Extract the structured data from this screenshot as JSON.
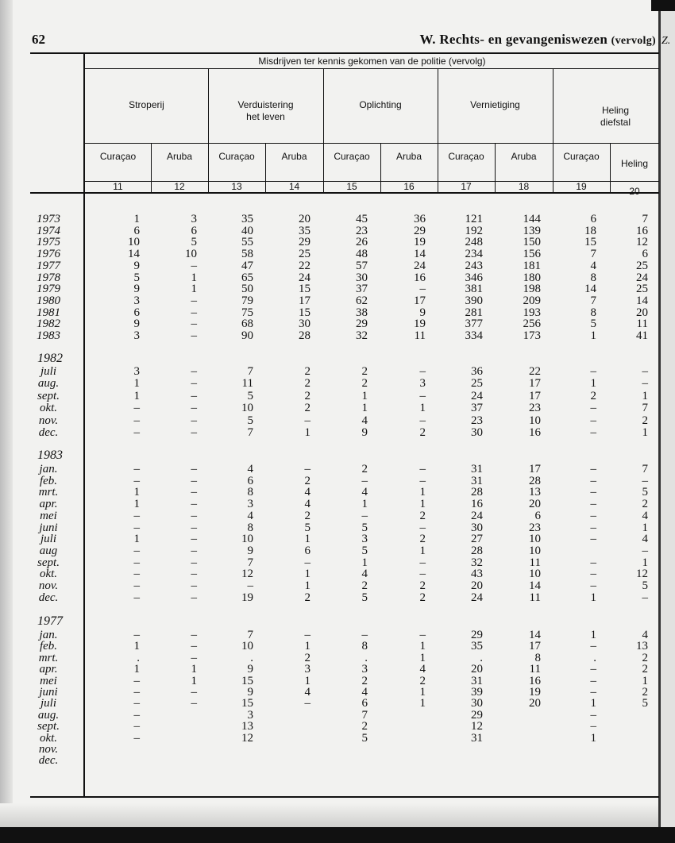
{
  "page_number": "62",
  "running_title": {
    "main": "W.  Rechts-  en  gevangeniswezen",
    "suffix": "(vervolg)"
  },
  "side_fragment": "Z.",
  "table": {
    "super_header": "Misdrijven ter kennis gekomen van de politie (vervolg)",
    "groups": [
      {
        "label": "Stroperij"
      },
      {
        "label": "Verduistering",
        "label2": "het leven"
      },
      {
        "label": "Oplichting"
      },
      {
        "label": "Vernietiging"
      },
      {
        "label": "Heling",
        "label2": "diefstal"
      }
    ],
    "subheaders": [
      "Curaçao",
      "Aruba",
      "Curaçao",
      "Aruba",
      "Curaçao",
      "Aruba",
      "Curaçao",
      "Aruba",
      "Curaçao",
      "Heling"
    ],
    "column_numbers": [
      "11",
      "12",
      "13",
      "14",
      "15",
      "16",
      "17",
      "18",
      "19",
      "20"
    ],
    "sections": [
      {
        "heading": "",
        "rows": [
          {
            "label": "1973",
            "values": [
              "1",
              "3",
              "35",
              "20",
              "45",
              "36",
              "121",
              "144",
              "6",
              "7"
            ]
          },
          {
            "label": "1974",
            "values": [
              "6",
              "6",
              "40",
              "35",
              "23",
              "29",
              "192",
              "139",
              "18",
              "16"
            ]
          },
          {
            "label": "1975",
            "values": [
              "10",
              "5",
              "55",
              "29",
              "26",
              "19",
              "248",
              "150",
              "15",
              "12"
            ]
          },
          {
            "label": "1976",
            "values": [
              "14",
              "10",
              "58",
              "25",
              "48",
              "14",
              "234",
              "156",
              "7",
              "6"
            ]
          },
          {
            "label": "1977",
            "values": [
              "9",
              "–",
              "47",
              "22",
              "57",
              "24",
              "243",
              "181",
              "4",
              "25"
            ]
          },
          {
            "label": "1978",
            "values": [
              "5",
              "1",
              "65",
              "24",
              "30",
              "16",
              "346",
              "180",
              "8",
              "24"
            ]
          },
          {
            "label": "1979",
            "values": [
              "9",
              "1",
              "50",
              "15",
              "37",
              "–",
              "381",
              "198",
              "14",
              "25"
            ]
          },
          {
            "label": "1980",
            "values": [
              "3",
              "–",
              "79",
              "17",
              "62",
              "17",
              "390",
              "209",
              "7",
              "14"
            ]
          },
          {
            "label": "1981",
            "values": [
              "6",
              "–",
              "75",
              "15",
              "38",
              "9",
              "281",
              "193",
              "8",
              "20"
            ]
          },
          {
            "label": "1982",
            "values": [
              "9",
              "–",
              "68",
              "30",
              "29",
              "19",
              "377",
              "256",
              "5",
              "11"
            ]
          },
          {
            "label": "1983",
            "values": [
              "3",
              "–",
              "90",
              "28",
              "32",
              "11",
              "334",
              "173",
              "1",
              "41"
            ]
          }
        ]
      },
      {
        "heading": "1982",
        "rows": [
          {
            "label": "juli",
            "values": [
              "3",
              "–",
              "7",
              "2",
              "2",
              "–",
              "36",
              "22",
              "–",
              "–"
            ]
          },
          {
            "label": "aug.",
            "values": [
              "1",
              "–",
              "11",
              "2",
              "2",
              "3",
              "25",
              "17",
              "1",
              "–"
            ]
          },
          {
            "label": "sept.",
            "values": [
              "1",
              "–",
              "5",
              "2",
              "1",
              "–",
              "24",
              "17",
              "2",
              "1"
            ]
          },
          {
            "label": "okt.",
            "values": [
              "–",
              "–",
              "10",
              "2",
              "1",
              "1",
              "37",
              "23",
              "–",
              "7"
            ]
          },
          {
            "label": "nov.",
            "values": [
              "–",
              "–",
              "5",
              "–",
              "4",
              "–",
              "23",
              "10",
              "–",
              "2"
            ]
          },
          {
            "label": "dec.",
            "values": [
              "–",
              "–",
              "7",
              "1",
              "9",
              "2",
              "30",
              "16",
              "–",
              "1"
            ]
          }
        ]
      },
      {
        "heading": "1983",
        "rows": [
          {
            "label": "jan.",
            "values": [
              "–",
              "–",
              "4",
              "–",
              "2",
              "–",
              "31",
              "17",
              "–",
              "7"
            ]
          },
          {
            "label": "feb.",
            "values": [
              "–",
              "–",
              "6",
              "2",
              "–",
              "–",
              "31",
              "28",
              "–",
              "–"
            ]
          },
          {
            "label": "mrt.",
            "values": [
              "1",
              "–",
              "8",
              "4",
              "4",
              "1",
              "28",
              "13",
              "–",
              "5"
            ]
          },
          {
            "label": "apr.",
            "values": [
              "1",
              "–",
              "3",
              "4",
              "1",
              "1",
              "16",
              "20",
              "–",
              "2"
            ]
          },
          {
            "label": "mei",
            "values": [
              "–",
              "–",
              "4",
              "2",
              "–",
              "2",
              "24",
              "6",
              "–",
              "4"
            ]
          },
          {
            "label": "juni",
            "values": [
              "–",
              "–",
              "8",
              "5",
              "5",
              "–",
              "30",
              "23",
              "–",
              "1"
            ]
          },
          {
            "label": "juli",
            "values": [
              "1",
              "–",
              "10",
              "1",
              "3",
              "2",
              "27",
              "10",
              "–",
              "4"
            ]
          },
          {
            "label": "aug",
            "values": [
              "–",
              "–",
              "9",
              "6",
              "5",
              "1",
              "28",
              "10",
              "",
              "–"
            ]
          },
          {
            "label": "sept.",
            "values": [
              "–",
              "–",
              "7",
              "–",
              "1",
              "–",
              "32",
              "11",
              "–",
              "1"
            ]
          },
          {
            "label": "okt.",
            "values": [
              "–",
              "–",
              "12",
              "1",
              "4",
              "–",
              "43",
              "10",
              "–",
              "12"
            ]
          },
          {
            "label": "nov.",
            "values": [
              "–",
              "–",
              "–",
              "1",
              "2",
              "2",
              "20",
              "14",
              "–",
              "5"
            ]
          },
          {
            "label": "dec.",
            "values": [
              "–",
              "–",
              "19",
              "2",
              "5",
              "2",
              "24",
              "11",
              "1",
              "–"
            ]
          }
        ]
      },
      {
        "heading": "1977",
        "rows": [
          {
            "label": "jan.",
            "values": [
              "–",
              "–",
              "7",
              "–",
              "–",
              "–",
              "29",
              "14",
              "1",
              "4"
            ]
          },
          {
            "label": "feb.",
            "values": [
              "1",
              "–",
              "10",
              "1",
              "8",
              "1",
              "35",
              "17",
              "–",
              "13"
            ]
          },
          {
            "label": "mrt.",
            "values": [
              ".",
              "–",
              ".",
              "2",
              ".",
              "1",
              ".",
              "8",
              ".",
              "2"
            ]
          },
          {
            "label": "apr.",
            "values": [
              "1",
              "1",
              "9",
              "3",
              "3",
              "4",
              "20",
              "11",
              "–",
              "2"
            ]
          },
          {
            "label": "mei",
            "values": [
              "–",
              "1",
              "15",
              "1",
              "2",
              "2",
              "31",
              "16",
              "–",
              "1"
            ]
          },
          {
            "label": "juni",
            "values": [
              "–",
              "–",
              "9",
              "4",
              "4",
              "1",
              "39",
              "19",
              "–",
              "2"
            ]
          },
          {
            "label": "juli",
            "values": [
              "–",
              "–",
              "15",
              "–",
              "6",
              "1",
              "30",
              "20",
              "1",
              "5"
            ]
          },
          {
            "label": "aug.",
            "values": [
              "–",
              "",
              "3",
              "",
              "7",
              "",
              "29",
              "",
              "–",
              ""
            ]
          },
          {
            "label": "sept.",
            "values": [
              "–",
              "",
              "13",
              "",
              "2",
              "",
              "12",
              "",
              "–",
              ""
            ]
          },
          {
            "label": "okt.",
            "values": [
              "–",
              "",
              "12",
              "",
              "5",
              "",
              "31",
              "",
              "1",
              ""
            ]
          },
          {
            "label": "nov.",
            "values": [
              "",
              "",
              "",
              "",
              "",
              "",
              "",
              "",
              "",
              ""
            ]
          },
          {
            "label": "dec.",
            "values": [
              "",
              "",
              "",
              "",
              "",
              "",
              "",
              "",
              "",
              ""
            ]
          }
        ]
      }
    ]
  }
}
